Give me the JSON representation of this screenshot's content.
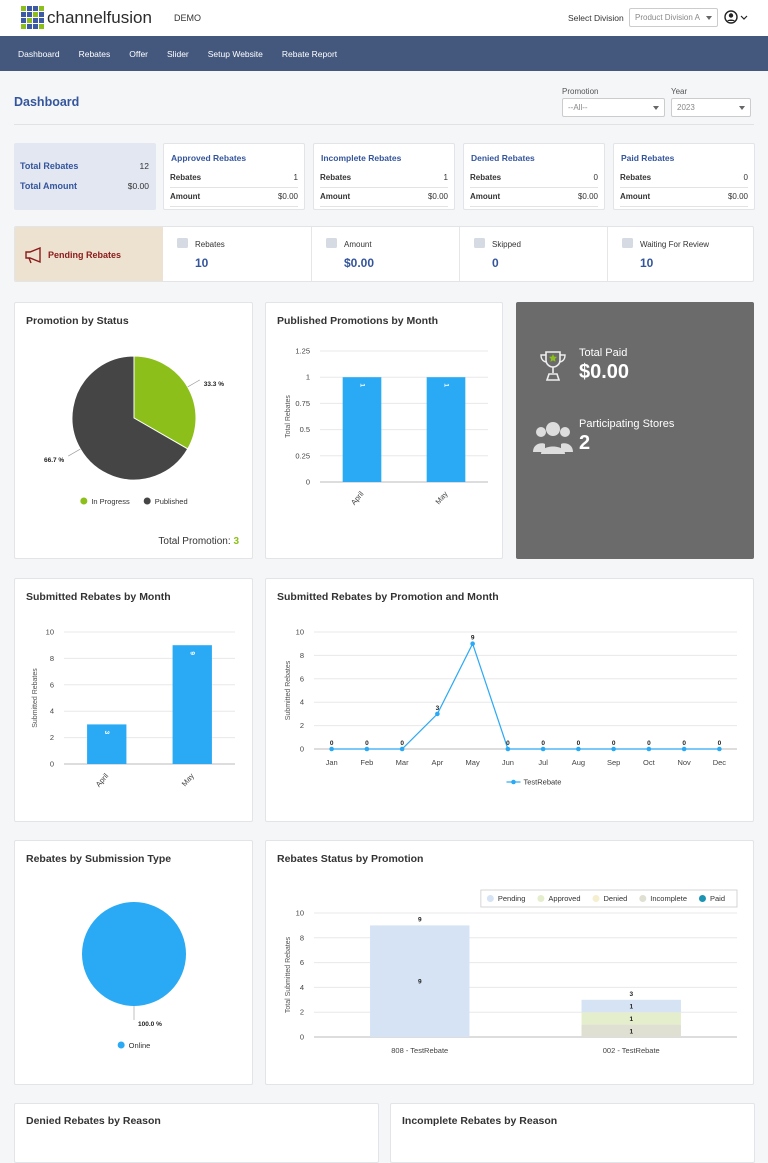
{
  "header": {
    "logo": "channelfusion",
    "app": "DEMO",
    "division_label": "Select Division",
    "division": "Product Division A"
  },
  "nav": [
    "Dashboard",
    "Rebates",
    "Offer",
    "Slider",
    "Setup Website",
    "Rebate Report"
  ],
  "page": {
    "title": "Dashboard",
    "filters": [
      {
        "label": "Promotion",
        "value": "--All--"
      },
      {
        "label": "Year",
        "value": "2023"
      }
    ]
  },
  "totals": [
    {
      "label": "Total Rebates",
      "value": "12"
    },
    {
      "label": "Total Amount",
      "value": "$0.00"
    }
  ],
  "status_cards": [
    {
      "title": "Approved Rebates",
      "rows": [
        {
          "label": "Rebates",
          "value": "1"
        },
        {
          "label": "Amount",
          "value": "$0.00"
        }
      ]
    },
    {
      "title": "Incomplete Rebates",
      "rows": [
        {
          "label": "Rebates",
          "value": "1"
        },
        {
          "label": "Amount",
          "value": "$0.00"
        }
      ]
    },
    {
      "title": "Denied Rebates",
      "rows": [
        {
          "label": "Rebates",
          "value": "0"
        },
        {
          "label": "Amount",
          "value": "$0.00"
        }
      ]
    },
    {
      "title": "Paid Rebates",
      "rows": [
        {
          "label": "Rebates",
          "value": "0"
        },
        {
          "label": "Amount",
          "value": "$0.00"
        }
      ]
    }
  ],
  "pending": {
    "title": "Pending Rebates",
    "items": [
      {
        "label": "Rebates",
        "value": "10"
      },
      {
        "label": "Amount",
        "value": "$0.00"
      },
      {
        "label": "Skipped",
        "value": "0"
      },
      {
        "label": "Waiting For Review",
        "value": "10"
      }
    ]
  },
  "paid_panel": [
    {
      "label": "Total Paid",
      "value": "$0.00"
    },
    {
      "label": "Participating Stores",
      "value": "2"
    }
  ],
  "chart_data": [
    {
      "type": "pie",
      "title": "Promotion by Status",
      "categories": [
        "In Progress",
        "Published"
      ],
      "values": [
        33.3,
        66.7
      ],
      "value_labels": [
        "33.3 %",
        "66.7 %"
      ],
      "colors": [
        "#8cbf1a",
        "#454545"
      ],
      "footer": {
        "label": "Total Promotion:",
        "value": 3
      }
    },
    {
      "type": "bar",
      "title": "Published Promotions by Month",
      "categories": [
        "April",
        "May"
      ],
      "values": [
        1,
        1
      ],
      "color": "#2aa9f5",
      "ylabel": "Total Rebates",
      "ylim": [
        0,
        1.25
      ],
      "yticks": [
        0,
        0.25,
        0.5,
        0.75,
        1,
        1.25
      ],
      "grid": true
    },
    {
      "type": "bar",
      "title": "Submitted Rebates by Month",
      "categories": [
        "April",
        "May"
      ],
      "values": [
        3,
        9
      ],
      "color": "#2aa9f5",
      "ylabel": "Submitted Rebates",
      "ylim": [
        0,
        10
      ],
      "yticks": [
        0,
        2,
        4,
        6,
        8,
        10
      ],
      "grid": true
    },
    {
      "type": "line",
      "title": "Submitted Rebates by Promotion and Month",
      "categories": [
        "Jan",
        "Feb",
        "Mar",
        "Apr",
        "May",
        "Jun",
        "Jul",
        "Aug",
        "Sep",
        "Oct",
        "Nov",
        "Dec"
      ],
      "series": [
        {
          "name": "TestRebate",
          "color": "#2aa9f5",
          "values": [
            0,
            0,
            0,
            3,
            9,
            0,
            0,
            0,
            0,
            0,
            0,
            0
          ]
        }
      ],
      "ylabel": "Submitted Rebates",
      "ylim": [
        0,
        10
      ],
      "yticks": [
        0,
        2,
        4,
        6,
        8,
        10
      ],
      "grid": true
    },
    {
      "type": "pie",
      "title": "Rebates by Submission Type",
      "categories": [
        "Online"
      ],
      "values": [
        100
      ],
      "value_labels": [
        "100.0 %"
      ],
      "colors": [
        "#2aa9f5"
      ]
    },
    {
      "type": "stacked_bar",
      "title": "Rebates Status by Promotion",
      "categories": [
        "808 - TestRebate",
        "002 - TestRebate"
      ],
      "series": [
        {
          "name": "Pending",
          "color": "#d5e3f4",
          "values": [
            9,
            1
          ]
        },
        {
          "name": "Approved",
          "color": "#e4eecd",
          "values": [
            0,
            1
          ]
        },
        {
          "name": "Denied",
          "color": "#f6efcf",
          "values": [
            0,
            0
          ]
        },
        {
          "name": "Incomplete",
          "color": "#dfdfd2",
          "values": [
            0,
            1
          ]
        },
        {
          "name": "Paid",
          "color": "#1b94b3",
          "values": [
            0,
            0
          ]
        }
      ],
      "totals": [
        9,
        3
      ],
      "ylabel": "Total Submitted Rebates",
      "ylim": [
        0,
        10
      ],
      "yticks": [
        0,
        2,
        4,
        6,
        8,
        10
      ],
      "grid": true,
      "legend": "top-right"
    }
  ],
  "bottom_panels": [
    "Denied Rebates by Reason",
    "Incomplete Rebates by Reason"
  ]
}
